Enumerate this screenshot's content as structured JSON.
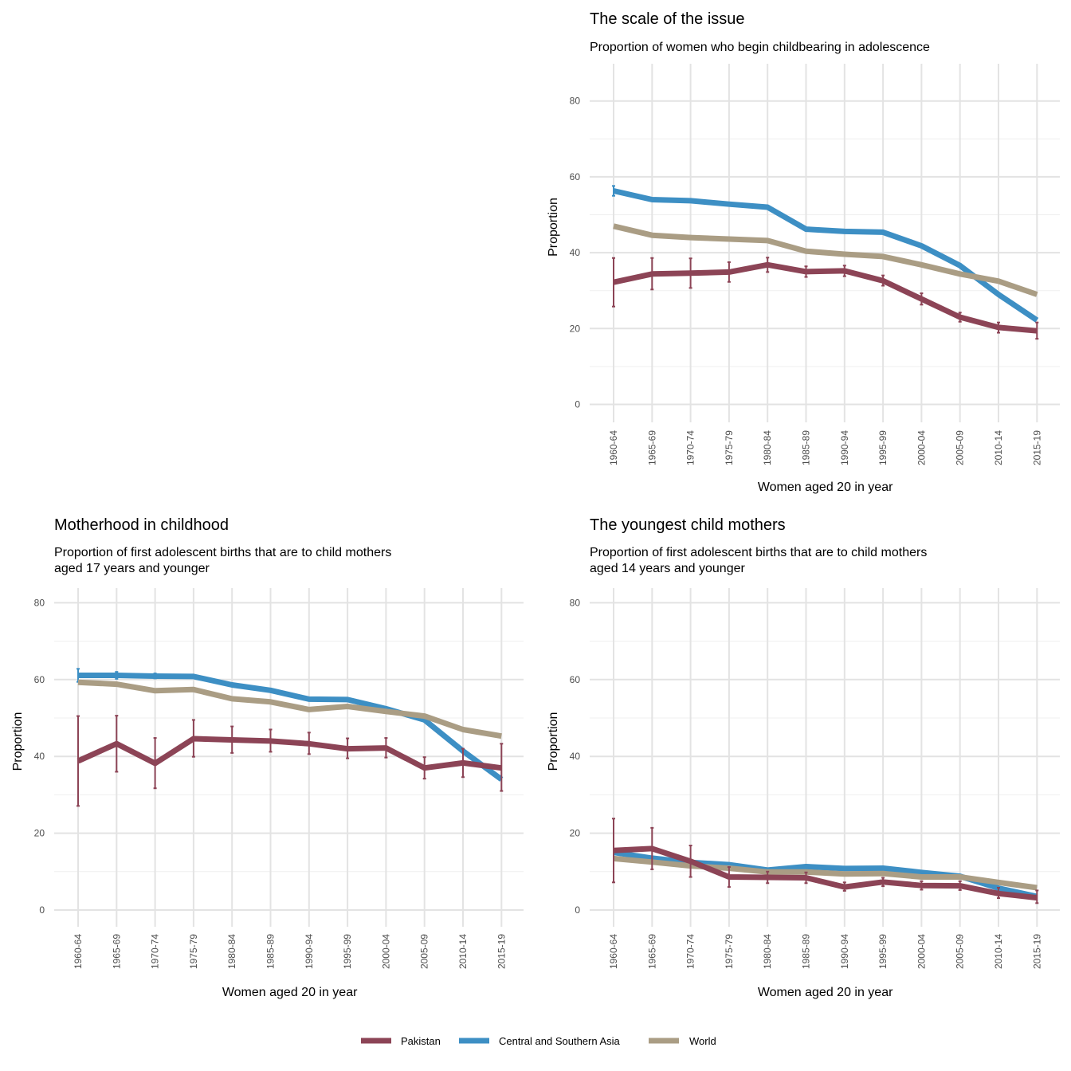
{
  "colors": {
    "pakistan": "#8c4456",
    "csa": "#3d8fc4",
    "world": "#aa9d84",
    "grid_major": "#e3e3e3",
    "grid_minor": "#efefef"
  },
  "legend": [
    {
      "name": "Pakistan",
      "color": "#8c4456"
    },
    {
      "name": "Central and Southern Asia",
      "color": "#3d8fc4"
    },
    {
      "name": "World",
      "color": "#aa9d84"
    }
  ],
  "chart_data": [
    {
      "id": "scale",
      "type": "line",
      "title": "The scale of the issue",
      "subtitle": [
        "Proportion of women who begin childbearing in adolescence"
      ],
      "xlabel": "Women aged 20 in year",
      "ylabel": "Proportion",
      "ylim": [
        0,
        80
      ],
      "yticks": [
        0,
        20,
        40,
        60,
        80
      ],
      "categories": [
        "1960-64",
        "1965-69",
        "1970-74",
        "1975-79",
        "1980-84",
        "1985-89",
        "1990-94",
        "1995-99",
        "2000-04",
        "2005-09",
        "2010-14",
        "2015-19"
      ],
      "series": [
        {
          "name": "Central and Southern Asia",
          "color": "#3d8fc4",
          "values": [
            56.3,
            54.0,
            53.7,
            52.8,
            52.0,
            46.2,
            45.6,
            45.4,
            41.8,
            36.6,
            29.0,
            22.2
          ],
          "errors": [
            [
              55.0,
              57.6
            ],
            null,
            null,
            null,
            null,
            null,
            null,
            null,
            null,
            null,
            null,
            null
          ]
        },
        {
          "name": "World",
          "color": "#aa9d84",
          "values": [
            47.0,
            44.6,
            44.0,
            43.6,
            43.2,
            40.4,
            39.6,
            39.0,
            36.8,
            34.4,
            32.5,
            29.0
          ],
          "errors": null
        },
        {
          "name": "Pakistan",
          "color": "#8c4456",
          "values": [
            32.2,
            34.4,
            34.6,
            34.9,
            36.8,
            35.0,
            35.2,
            32.6,
            27.8,
            23.0,
            20.3,
            19.4
          ],
          "errors": [
            [
              25.8,
              38.6
            ],
            [
              30.3,
              38.6
            ],
            [
              30.7,
              38.5
            ],
            [
              32.3,
              37.5
            ],
            [
              34.9,
              38.7
            ],
            [
              33.6,
              36.4
            ],
            [
              33.8,
              36.6
            ],
            [
              31.3,
              34.0
            ],
            [
              26.3,
              29.3
            ],
            [
              21.8,
              24.2
            ],
            [
              18.9,
              21.6
            ],
            [
              17.3,
              21.6
            ]
          ]
        }
      ]
    },
    {
      "id": "motherhood",
      "type": "line",
      "title": "Motherhood in childhood",
      "subtitle": [
        "Proportion of first adolescent births that are to child mothers",
        "aged 17 years and younger"
      ],
      "xlabel": "Women aged 20 in year",
      "ylabel": "Proportion",
      "ylim": [
        0,
        80
      ],
      "yticks": [
        0,
        20,
        40,
        60,
        80
      ],
      "categories": [
        "1960-64",
        "1965-69",
        "1970-74",
        "1975-79",
        "1980-84",
        "1985-89",
        "1990-94",
        "1995-99",
        "2000-04",
        "2005-09",
        "2010-14",
        "2015-19"
      ],
      "series": [
        {
          "name": "Central and Southern Asia",
          "color": "#3d8fc4",
          "values": [
            61.1,
            61.1,
            60.9,
            60.8,
            58.6,
            57.2,
            54.9,
            54.8,
            52.4,
            49.5,
            41.4,
            34.0
          ],
          "errors": [
            [
              59.4,
              62.8
            ],
            [
              60.2,
              62.0
            ],
            [
              60.3,
              61.6
            ],
            null,
            null,
            null,
            null,
            null,
            null,
            null,
            null,
            null
          ]
        },
        {
          "name": "World",
          "color": "#aa9d84",
          "values": [
            59.3,
            58.8,
            57.1,
            57.4,
            55.0,
            54.2,
            52.2,
            53.0,
            51.7,
            50.5,
            47.0,
            45.3
          ],
          "errors": null
        },
        {
          "name": "Pakistan",
          "color": "#8c4456",
          "values": [
            38.8,
            43.3,
            38.2,
            44.6,
            44.3,
            44.0,
            43.3,
            42.0,
            42.2,
            37.0,
            38.3,
            37.0
          ],
          "errors": [
            [
              27.1,
              50.5
            ],
            [
              36.0,
              50.6
            ],
            [
              31.7,
              44.8
            ],
            [
              39.9,
              49.5
            ],
            [
              40.9,
              47.8
            ],
            [
              41.2,
              47.0
            ],
            [
              40.6,
              46.2
            ],
            [
              39.5,
              44.7
            ],
            [
              39.7,
              44.8
            ],
            [
              34.2,
              39.8
            ],
            [
              34.6,
              42.0
            ],
            [
              31.0,
              43.3
            ]
          ]
        }
      ]
    },
    {
      "id": "youngest",
      "type": "line",
      "title": "The youngest child mothers",
      "subtitle": [
        "Proportion of first adolescent births that are to child mothers",
        "aged 14 years and younger"
      ],
      "xlabel": "Women aged 20 in year",
      "ylabel": "Proportion",
      "ylim": [
        0,
        80
      ],
      "yticks": [
        0,
        20,
        40,
        60,
        80
      ],
      "categories": [
        "1960-64",
        "1965-69",
        "1970-74",
        "1975-79",
        "1980-84",
        "1985-89",
        "1990-94",
        "1995-99",
        "2000-04",
        "2005-09",
        "2010-14",
        "2015-19"
      ],
      "series": [
        {
          "name": "Central and Southern Asia",
          "color": "#3d8fc4",
          "values": [
            15.0,
            13.5,
            12.4,
            11.8,
            10.4,
            11.3,
            10.8,
            10.9,
            9.8,
            8.8,
            5.7,
            3.5
          ],
          "errors": null
        },
        {
          "name": "World",
          "color": "#aa9d84",
          "values": [
            13.4,
            12.5,
            11.5,
            10.9,
            9.9,
            9.9,
            9.4,
            9.5,
            8.6,
            8.6,
            7.2,
            5.8
          ],
          "errors": null
        },
        {
          "name": "Pakistan",
          "color": "#8c4456",
          "values": [
            15.5,
            16.0,
            12.7,
            8.6,
            8.5,
            8.4,
            6.0,
            7.3,
            6.4,
            6.3,
            4.3,
            3.2
          ],
          "errors": [
            [
              7.2,
              23.8
            ],
            [
              10.6,
              21.4
            ],
            [
              8.6,
              16.8
            ],
            [
              6.0,
              11.2
            ],
            [
              7.0,
              10.0
            ],
            [
              7.0,
              9.8
            ],
            [
              5.0,
              7.2
            ],
            [
              6.2,
              8.4
            ],
            [
              5.3,
              7.5
            ],
            [
              5.2,
              7.5
            ],
            [
              3.1,
              5.8
            ],
            [
              1.8,
              5.1
            ]
          ]
        }
      ]
    }
  ]
}
